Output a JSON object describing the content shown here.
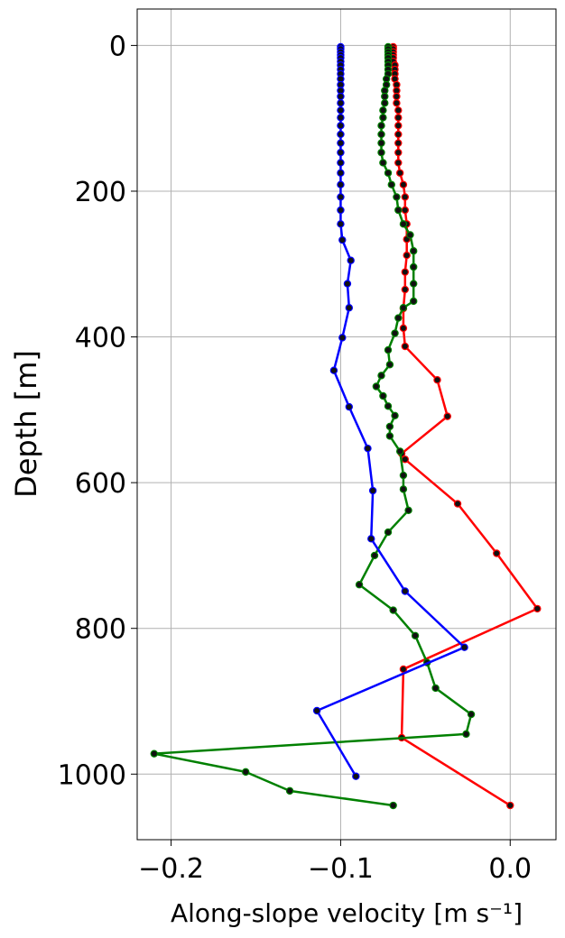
{
  "chart_data": {
    "type": "line",
    "xlabel": "Along-slope velocity [m s⁻¹]",
    "ylabel": "Depth [m]",
    "xlim": [
      -0.22,
      0.027
    ],
    "ylim": [
      1090,
      -50
    ],
    "y_inverted": true,
    "x_ticks": [
      -0.2,
      -0.1,
      0.0
    ],
    "x_tick_labels": [
      "−0.2",
      "−0.1",
      "0.0"
    ],
    "y_ticks": [
      0,
      200,
      400,
      600,
      800,
      1000
    ],
    "y_tick_labels": [
      "0",
      "200",
      "400",
      "600",
      "800",
      "1000"
    ],
    "grid": true,
    "legend": "none",
    "marker": {
      "shape": "circle",
      "face_color": "#111111"
    },
    "series": [
      {
        "color": "#ff0000",
        "points": [
          [
            -0.069,
            2
          ],
          [
            -0.069,
            5
          ],
          [
            -0.069,
            9
          ],
          [
            -0.069,
            13
          ],
          [
            -0.069,
            17
          ],
          [
            -0.069,
            22
          ],
          [
            -0.068,
            27
          ],
          [
            -0.068,
            33
          ],
          [
            -0.068,
            39
          ],
          [
            -0.068,
            46
          ],
          [
            -0.067,
            54
          ],
          [
            -0.067,
            62
          ],
          [
            -0.067,
            70
          ],
          [
            -0.067,
            79
          ],
          [
            -0.066,
            89
          ],
          [
            -0.066,
            99
          ],
          [
            -0.066,
            110
          ],
          [
            -0.066,
            122
          ],
          [
            -0.066,
            134
          ],
          [
            -0.066,
            147
          ],
          [
            -0.066,
            161
          ],
          [
            -0.065,
            175
          ],
          [
            -0.063,
            191
          ],
          [
            -0.062,
            208
          ],
          [
            -0.062,
            226
          ],
          [
            -0.061,
            245
          ],
          [
            -0.061,
            266
          ],
          [
            -0.061,
            288
          ],
          [
            -0.062,
            311
          ],
          [
            -0.062,
            335
          ],
          [
            -0.063,
            361
          ],
          [
            -0.063,
            388
          ],
          [
            -0.062,
            413
          ],
          [
            -0.043,
            459
          ],
          [
            -0.037,
            509
          ],
          [
            -0.064,
            560
          ],
          [
            -0.062,
            568
          ],
          [
            -0.031,
            629
          ],
          [
            -0.008,
            697
          ],
          [
            0.016,
            773
          ],
          [
            -0.063,
            856
          ],
          [
            -0.064,
            950
          ],
          [
            0.0,
            1043
          ]
        ]
      },
      {
        "color": "#008000",
        "points": [
          [
            -0.072,
            2
          ],
          [
            -0.072,
            5
          ],
          [
            -0.072,
            9
          ],
          [
            -0.072,
            13
          ],
          [
            -0.072,
            17
          ],
          [
            -0.072,
            22
          ],
          [
            -0.072,
            27
          ],
          [
            -0.072,
            33
          ],
          [
            -0.072,
            39
          ],
          [
            -0.073,
            46
          ],
          [
            -0.073,
            54
          ],
          [
            -0.074,
            62
          ],
          [
            -0.074,
            70
          ],
          [
            -0.074,
            79
          ],
          [
            -0.075,
            89
          ],
          [
            -0.075,
            99
          ],
          [
            -0.076,
            110
          ],
          [
            -0.076,
            122
          ],
          [
            -0.076,
            134
          ],
          [
            -0.076,
            147
          ],
          [
            -0.075,
            161
          ],
          [
            -0.072,
            175
          ],
          [
            -0.07,
            191
          ],
          [
            -0.067,
            208
          ],
          [
            -0.066,
            226
          ],
          [
            -0.063,
            245
          ],
          [
            -0.059,
            260
          ],
          [
            -0.057,
            282
          ],
          [
            -0.057,
            304
          ],
          [
            -0.057,
            327
          ],
          [
            -0.057,
            351
          ],
          [
            -0.063,
            360
          ],
          [
            -0.066,
            374
          ],
          [
            -0.068,
            395
          ],
          [
            -0.072,
            418
          ],
          [
            -0.071,
            438
          ],
          [
            -0.076,
            453
          ],
          [
            -0.079,
            468
          ],
          [
            -0.075,
            481
          ],
          [
            -0.072,
            495
          ],
          [
            -0.068,
            508
          ],
          [
            -0.071,
            523
          ],
          [
            -0.071,
            536
          ],
          [
            -0.065,
            557
          ],
          [
            -0.063,
            590
          ],
          [
            -0.063,
            609
          ],
          [
            -0.06,
            638
          ],
          [
            -0.072,
            668
          ],
          [
            -0.08,
            700
          ],
          [
            -0.089,
            740
          ],
          [
            -0.069,
            775
          ],
          [
            -0.056,
            810
          ],
          [
            -0.049,
            847
          ],
          [
            -0.044,
            882
          ],
          [
            -0.023,
            918
          ],
          [
            -0.026,
            945
          ],
          [
            -0.21,
            972
          ],
          [
            -0.156,
            997
          ],
          [
            -0.13,
            1023
          ],
          [
            -0.069,
            1043
          ]
        ]
      },
      {
        "color": "#0000ff",
        "points": [
          [
            -0.1,
            2
          ],
          [
            -0.1,
            5
          ],
          [
            -0.1,
            9
          ],
          [
            -0.1,
            13
          ],
          [
            -0.1,
            17
          ],
          [
            -0.1,
            22
          ],
          [
            -0.1,
            27
          ],
          [
            -0.1,
            33
          ],
          [
            -0.1,
            39
          ],
          [
            -0.1,
            46
          ],
          [
            -0.1,
            54
          ],
          [
            -0.1,
            62
          ],
          [
            -0.1,
            70
          ],
          [
            -0.1,
            79
          ],
          [
            -0.1,
            89
          ],
          [
            -0.1,
            99
          ],
          [
            -0.1,
            110
          ],
          [
            -0.1,
            122
          ],
          [
            -0.1,
            134
          ],
          [
            -0.1,
            147
          ],
          [
            -0.1,
            161
          ],
          [
            -0.1,
            175
          ],
          [
            -0.1,
            191
          ],
          [
            -0.1,
            208
          ],
          [
            -0.1,
            226
          ],
          [
            -0.1,
            245
          ],
          [
            -0.099,
            267
          ],
          [
            -0.094,
            295
          ],
          [
            -0.096,
            327
          ],
          [
            -0.095,
            360
          ],
          [
            -0.099,
            401
          ],
          [
            -0.104,
            446
          ],
          [
            -0.095,
            496
          ],
          [
            -0.084,
            553
          ],
          [
            -0.081,
            611
          ],
          [
            -0.082,
            677
          ],
          [
            -0.062,
            749
          ],
          [
            -0.027,
            826
          ],
          [
            -0.114,
            913
          ],
          [
            -0.091,
            1003
          ]
        ]
      }
    ]
  }
}
